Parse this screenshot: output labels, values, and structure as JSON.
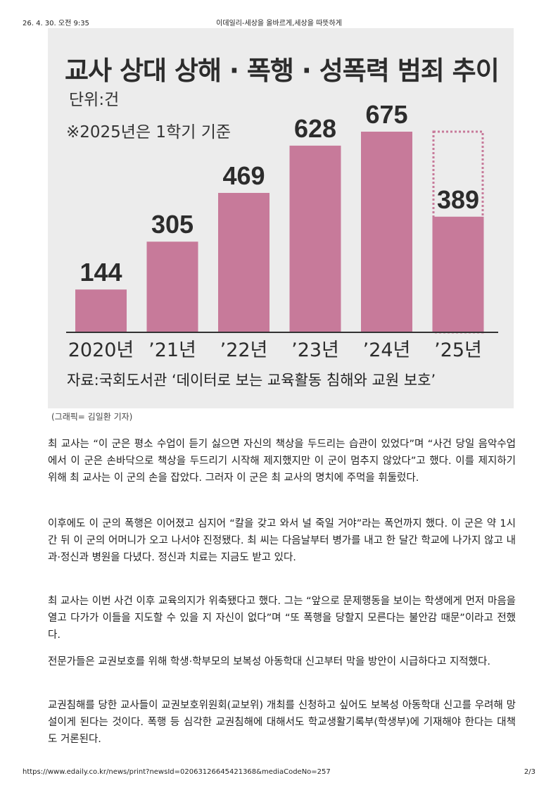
{
  "header": {
    "datetime": "26. 4. 30. 오전 9:35",
    "site_title": "이데일리-세상을 올바르게,세상을 따뜻하게"
  },
  "figure": {
    "title": "교사 상대 상해 · 폭행 · 성폭력 범죄 추이",
    "unit": "단위:건",
    "note": "※2025년은 1학기 기준",
    "source": "자료:국회도서관 ‘데이터로 보는 교육활동 침해와 교원 보호’",
    "caption": "(그래픽= 김일환 기자)"
  },
  "chart_data": {
    "type": "bar",
    "categories": [
      "2020년",
      "’21년",
      "’22년",
      "’23년",
      "’24년",
      "’25년"
    ],
    "values": [
      144,
      305,
      469,
      628,
      675,
      389
    ],
    "title": "교사 상대 상해 · 폭행 · 성폭력 범죄 추이",
    "unit": "단위:건",
    "ylim": [
      0,
      720
    ],
    "bar_color": "#c77a9a",
    "dotted_outline_last_bar": true,
    "legend": "none",
    "grid": false
  },
  "article": {
    "paragraphs": [
      "최 교사는 “이 군은 평소 수업이 듣기 싫으면 자신의 책상을 두드리는 습관이 있었다”며 “사건 당일 음악수업에서 이 군은 손바닥으로 책상을 두드리기 시작해 제지했지만 이 군이 멈추지 않았다”고 했다. 이를 제지하기 위해 최 교사는 이 군의 손을 잡았다. 그러자 이 군은 최 교사의 명치에 주먹을 휘둘렀다.",
      "이후에도 이 군의 폭행은 이어졌고 심지어 “칼을 갖고 와서 널 죽일 거야”라는 폭언까지 했다. 이 군은 약 1시간 뒤 이 군의 어머니가 오고 나서야 진정됐다. 최 씨는 다음날부터 병가를 내고 한 달간 학교에 나가지 않고 내과·정신과 병원을 다녔다. 정신과 치료는 지금도 받고 있다.",
      "최 교사는 이번 사건 이후 교육의지가 위축됐다고 했다. 그는 “앞으로 문제행동을 보이는 학생에게 먼저 마음을 열고 다가가 이들을 지도할 수 있을 지 자신이 없다”며 “또 폭행을 당할지 모른다는 불안감 때문”이라고 전했다.",
      "전문가들은 교권보호를 위해 학생·학부모의 보복성 아동학대 신고부터 막을 방안이 시급하다고 지적했다.",
      "교권침해를 당한 교사들이 교권보호위원회(교보위) 개최를 신청하고 싶어도 보복성 아동학대 신고를 우려해 망설이게 된다는 것이다. 폭행 등 심각한 교권침해에 대해서도 학교생활기록부(학생부)에 기재해야 한다는 대책도 거론된다."
    ]
  },
  "footer": {
    "url": "https://www.edaily.co.kr/news/print?newsId=02063126645421368&mediaCodeNo=257",
    "page": "2/3"
  }
}
